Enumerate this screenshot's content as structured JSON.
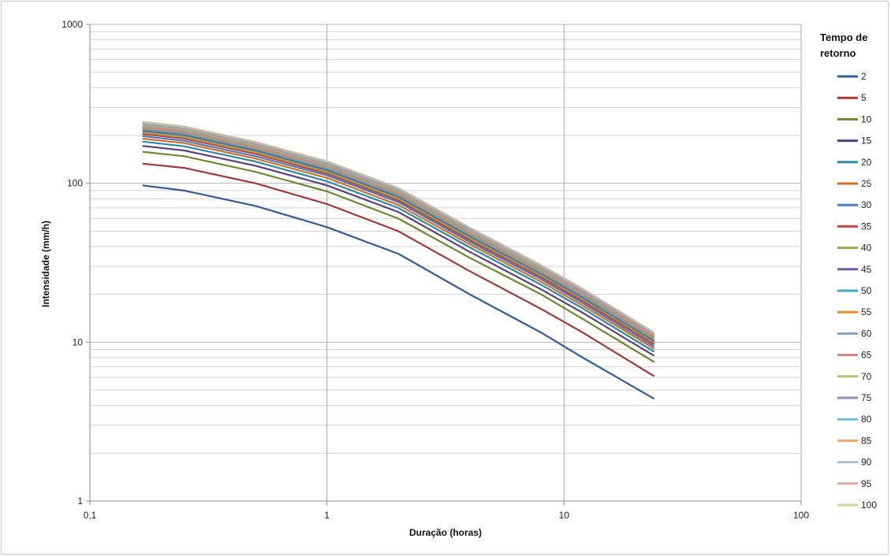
{
  "chart_data": {
    "type": "line",
    "xlabel": "Duração (horas)",
    "ylabel": "Intensidade (mm/h)",
    "x_scale": "log",
    "y_scale": "log",
    "xlim": [
      0.1,
      100
    ],
    "ylim": [
      1,
      1000
    ],
    "x_ticks": [
      "0,1",
      "1",
      "10",
      "100"
    ],
    "y_ticks": [
      "1",
      "10",
      "100",
      "1000"
    ],
    "grid": true,
    "legend": {
      "title_lines": [
        "Tempo de",
        "retorno"
      ],
      "placement": "right"
    },
    "x": [
      0.1667,
      0.25,
      0.5,
      1,
      2,
      4,
      8,
      12,
      24
    ],
    "series": [
      {
        "name": "2",
        "color": "#2E5C9C",
        "values": [
          97,
          90,
          72,
          53,
          36,
          20,
          11.5,
          8.0,
          4.4
        ]
      },
      {
        "name": "5",
        "color": "#A63632",
        "values": [
          133,
          125,
          100,
          74,
          50,
          28,
          16.2,
          11.5,
          6.1
        ]
      },
      {
        "name": "10",
        "color": "#6A8A2E",
        "values": [
          158,
          148,
          118,
          89,
          60,
          34,
          20,
          14,
          7.5
        ]
      },
      {
        "name": "15",
        "color": "#5A3F82",
        "values": [
          172,
          161,
          129,
          97,
          66,
          37,
          21.5,
          15.3,
          8.2
        ]
      },
      {
        "name": "20",
        "color": "#2A8AA8",
        "values": [
          183,
          171,
          137,
          103,
          70,
          39.5,
          23,
          16.3,
          8.7
        ]
      },
      {
        "name": "25",
        "color": "#D46E1E",
        "values": [
          191,
          179,
          143,
          108,
          73,
          41.3,
          24,
          17,
          9.1
        ]
      },
      {
        "name": "30",
        "color": "#4A7CC4",
        "values": [
          198,
          185,
          148,
          112,
          76,
          42.8,
          24.9,
          17.6,
          9.4
        ]
      },
      {
        "name": "35",
        "color": "#C8443E",
        "values": [
          204,
          191,
          153,
          115,
          78,
          44,
          25.6,
          18.1,
          9.7
        ]
      },
      {
        "name": "40",
        "color": "#8DB04A",
        "values": [
          209,
          196,
          157,
          118,
          80,
          45.1,
          26.2,
          18.5,
          9.9
        ]
      },
      {
        "name": "45",
        "color": "#7559A8",
        "values": [
          213,
          200,
          160,
          120.5,
          81.7,
          46,
          26.7,
          18.9,
          10.1
        ]
      },
      {
        "name": "50",
        "color": "#3CAAC6",
        "values": [
          217,
          204,
          163,
          123,
          83.2,
          46.9,
          27.2,
          19.3,
          10.3
        ]
      },
      {
        "name": "55",
        "color": "#F08A2C",
        "values": [
          221,
          207,
          166,
          125,
          84.6,
          47.7,
          27.7,
          19.6,
          10.5
        ]
      },
      {
        "name": "60",
        "color": "#7F9CCB",
        "values": [
          224,
          210,
          168,
          127,
          85.9,
          48.4,
          28.1,
          19.9,
          10.6
        ]
      },
      {
        "name": "65",
        "color": "#D6807C",
        "values": [
          227,
          213,
          170,
          128.5,
          87.1,
          49.1,
          28.5,
          20.2,
          10.8
        ]
      },
      {
        "name": "70",
        "color": "#A9C76C",
        "values": [
          230,
          216,
          172,
          130,
          88.2,
          49.7,
          28.9,
          20.4,
          10.9
        ]
      },
      {
        "name": "75",
        "color": "#9B86BE",
        "values": [
          233,
          218,
          174,
          131.5,
          89.2,
          50.3,
          29.2,
          20.7,
          11
        ]
      },
      {
        "name": "80",
        "color": "#6CC0D8",
        "values": [
          235,
          220,
          176,
          133,
          90.2,
          50.8,
          29.5,
          20.9,
          11.1
        ]
      },
      {
        "name": "85",
        "color": "#F6A460",
        "values": [
          237,
          222,
          178,
          134,
          91.1,
          51.3,
          29.8,
          21.1,
          11.2
        ]
      },
      {
        "name": "90",
        "color": "#A9BDD9",
        "values": [
          240,
          224,
          179,
          135.5,
          92,
          51.8,
          30.1,
          21.3,
          11.3
        ]
      },
      {
        "name": "95",
        "color": "#E3A8A6",
        "values": [
          242,
          226,
          181,
          136.5,
          92.8,
          52.3,
          30.4,
          21.5,
          11.4
        ]
      },
      {
        "name": "100",
        "color": "#C6D79A",
        "values": [
          244,
          228,
          182,
          138,
          93.6,
          52.7,
          30.6,
          21.7,
          11.5
        ]
      }
    ]
  }
}
